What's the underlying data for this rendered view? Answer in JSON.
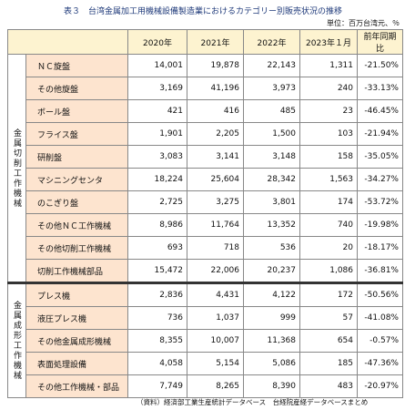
{
  "header": {
    "title": "表３　台湾金属加工用機械設備製造業におけるカテゴリー別販売状況の推移",
    "unit": "単位：百万台湾元、％"
  },
  "table": {
    "columns": [
      "2020年",
      "2021年",
      "2022年",
      "2023年１月",
      "前年同期比"
    ],
    "groups": [
      {
        "label": "金属切削工作機械",
        "rows": [
          [
            "ＮＣ旋盤",
            "14,001",
            "19,878",
            "22,143",
            "1,311",
            "-21.50%"
          ],
          [
            "その他旋盤",
            "3,169",
            "41,196",
            "3,973",
            "240",
            "-33.13%"
          ],
          [
            "ボール盤",
            "421",
            "416",
            "485",
            "23",
            "-46.45%"
          ],
          [
            "フライス盤",
            "1,901",
            "2,205",
            "1,500",
            "103",
            "-21.94%"
          ],
          [
            "研削盤",
            "3,083",
            "3,141",
            "3,148",
            "158",
            "-35.05%"
          ],
          [
            "マシニングセンタ",
            "18,224",
            "25,604",
            "28,342",
            "1,563",
            "-34.27%"
          ],
          [
            "のこぎり盤",
            "2,725",
            "3,275",
            "3,801",
            "174",
            "-53.72%"
          ],
          [
            "その他ＮＣ工作機械",
            "8,986",
            "11,764",
            "13,352",
            "740",
            "-19.98%"
          ],
          [
            "その他切削工作機械",
            "693",
            "718",
            "536",
            "20",
            "-18.17%"
          ],
          [
            "切削工作機械部品",
            "15,472",
            "22,006",
            "20,237",
            "1,086",
            "-36.81%"
          ]
        ]
      },
      {
        "label": "金属成形工作機械",
        "rows": [
          [
            "プレス機",
            "2,836",
            "4,431",
            "4,122",
            "172",
            "-50.56%"
          ],
          [
            "液圧プレス機",
            "736",
            "1,037",
            "999",
            "57",
            "-41.08%"
          ],
          [
            "その他金属成形機械",
            "8,355",
            "10,007",
            "11,368",
            "654",
            "-0.57%"
          ],
          [
            "表面処理設備",
            "4,058",
            "5,154",
            "5,086",
            "185",
            "-47.36%"
          ],
          [
            "その他工作機械・部品",
            "7,749",
            "8,265",
            "8,390",
            "483",
            "-20.97%"
          ]
        ]
      }
    ]
  },
  "footer": {
    "source": "（資料）経済部工業生産統計データベース　台経院産経データベースまとめ"
  }
}
